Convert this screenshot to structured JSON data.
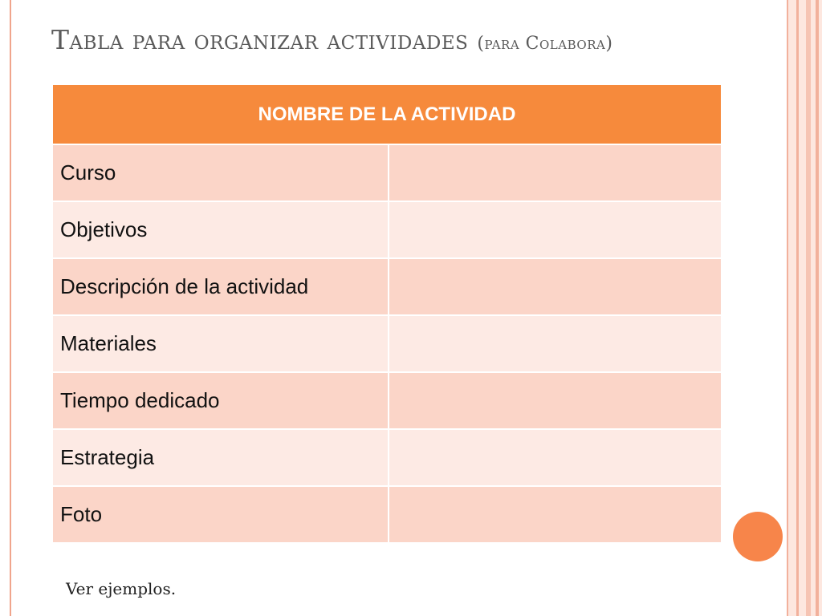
{
  "slide": {
    "title_main": "Tabla para organizar actividades",
    "title_sub": "(para Colabora)",
    "footer_note": "Ver ejemplos."
  },
  "table": {
    "header": "NOMBRE DE LA ACTIVIDAD",
    "rows": [
      {
        "label": "Curso",
        "value": ""
      },
      {
        "label": "Objetivos",
        "value": ""
      },
      {
        "label": "Descripción de la actividad",
        "value": ""
      },
      {
        "label": "Materiales",
        "value": ""
      },
      {
        "label": "Tiempo dedicado",
        "value": ""
      },
      {
        "label": "Estrategia",
        "value": ""
      },
      {
        "label": "Foto",
        "value": ""
      }
    ]
  },
  "colors": {
    "accent": "#f68a3c",
    "row_dark": "#fbd5c8",
    "row_light": "#fdeae4",
    "decor_circle": "#f7854a"
  }
}
